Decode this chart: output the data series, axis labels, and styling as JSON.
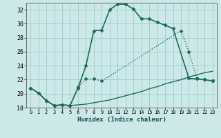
{
  "xlabel": "Humidex (Indice chaleur)",
  "bg_color": "#cce8e8",
  "grid_color": "#99cccc",
  "line_color": "#1a6b5a",
  "xlim": [
    -0.5,
    23.5
  ],
  "ylim": [
    18,
    33
  ],
  "xticks": [
    0,
    1,
    2,
    3,
    4,
    5,
    6,
    7,
    8,
    9,
    10,
    11,
    12,
    13,
    14,
    15,
    16,
    17,
    18,
    19,
    20,
    21,
    22,
    23
  ],
  "yticks": [
    18,
    20,
    22,
    24,
    26,
    28,
    30,
    32
  ],
  "series": [
    {
      "x": [
        0,
        1,
        2,
        3,
        4,
        5,
        6,
        7,
        8,
        9,
        10,
        11,
        12,
        13,
        14,
        15,
        16,
        17,
        18,
        20,
        21,
        22,
        23
      ],
      "y": [
        20.8,
        20.1,
        19.0,
        18.3,
        18.4,
        18.3,
        20.8,
        24.0,
        29.0,
        29.1,
        32.0,
        32.8,
        32.8,
        32.1,
        30.7,
        30.7,
        30.2,
        29.8,
        29.3,
        22.2,
        22.1,
        22.0,
        21.8
      ],
      "with_marker": true,
      "marker": "D",
      "markersize": 2.5,
      "linewidth": 1.2,
      "linestyle": "-"
    },
    {
      "x": [
        0,
        1,
        2,
        3,
        4,
        5,
        6,
        7,
        8,
        9,
        19,
        20,
        21,
        22,
        23
      ],
      "y": [
        20.8,
        20.1,
        19.0,
        18.3,
        18.4,
        18.3,
        21.0,
        22.1,
        22.1,
        21.8,
        29.0,
        26.0,
        22.2,
        22.0,
        21.8
      ],
      "with_marker": true,
      "marker": "D",
      "markersize": 2.5,
      "linewidth": 1.0,
      "linestyle": ":"
    },
    {
      "x": [
        0,
        1,
        2,
        3,
        4,
        5,
        6,
        7,
        8,
        9,
        10,
        11,
        12,
        13,
        14,
        15,
        16,
        17,
        18,
        19,
        20,
        21,
        22,
        23
      ],
      "y": [
        20.8,
        20.1,
        19.0,
        18.3,
        18.4,
        18.3,
        18.4,
        18.5,
        18.7,
        18.9,
        19.1,
        19.4,
        19.7,
        20.0,
        20.3,
        20.7,
        21.0,
        21.4,
        21.7,
        22.0,
        22.4,
        22.7,
        23.0,
        23.2
      ],
      "with_marker": false,
      "marker": null,
      "markersize": 0,
      "linewidth": 1.0,
      "linestyle": "-"
    }
  ]
}
